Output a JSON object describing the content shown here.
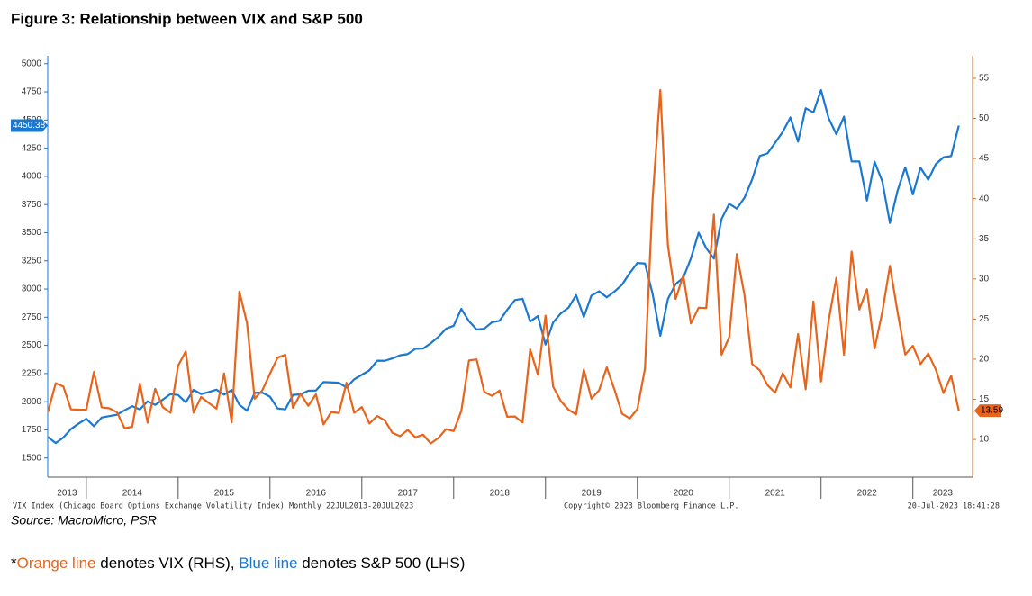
{
  "chart_data": {
    "type": "line",
    "title": "Figure 3: Relationship between VIX and S&P 500",
    "x": [
      2013.583,
      2013.667,
      2013.75,
      2013.833,
      2013.917,
      2014.0,
      2014.083,
      2014.167,
      2014.25,
      2014.333,
      2014.417,
      2014.5,
      2014.583,
      2014.667,
      2014.75,
      2014.833,
      2014.917,
      2015.0,
      2015.083,
      2015.167,
      2015.25,
      2015.333,
      2015.417,
      2015.5,
      2015.583,
      2015.667,
      2015.75,
      2015.833,
      2015.917,
      2016.0,
      2016.083,
      2016.167,
      2016.25,
      2016.333,
      2016.417,
      2016.5,
      2016.583,
      2016.667,
      2016.75,
      2016.833,
      2016.917,
      2017.0,
      2017.083,
      2017.167,
      2017.25,
      2017.333,
      2017.417,
      2017.5,
      2017.583,
      2017.667,
      2017.75,
      2017.833,
      2017.917,
      2018.0,
      2018.083,
      2018.167,
      2018.25,
      2018.333,
      2018.417,
      2018.5,
      2018.583,
      2018.667,
      2018.75,
      2018.833,
      2018.917,
      2019.0,
      2019.083,
      2019.167,
      2019.25,
      2019.333,
      2019.417,
      2019.5,
      2019.583,
      2019.667,
      2019.75,
      2019.833,
      2019.917,
      2020.0,
      2020.083,
      2020.167,
      2020.25,
      2020.333,
      2020.417,
      2020.5,
      2020.583,
      2020.667,
      2020.75,
      2020.833,
      2020.917,
      2021.0,
      2021.083,
      2021.167,
      2021.25,
      2021.333,
      2021.417,
      2021.5,
      2021.583,
      2021.667,
      2021.75,
      2021.833,
      2021.917,
      2022.0,
      2022.083,
      2022.167,
      2022.25,
      2022.333,
      2022.417,
      2022.5,
      2022.583,
      2022.667,
      2022.75,
      2022.833,
      2022.917,
      2023.0,
      2023.083,
      2023.167,
      2023.25,
      2023.333,
      2023.417,
      2023.5
    ],
    "series": [
      {
        "name": "S&P 500",
        "color": "#1a78d2",
        "axis": "y",
        "values": [
          1686,
          1633,
          1682,
          1757,
          1806,
          1848,
          1783,
          1859,
          1872,
          1884,
          1924,
          1960,
          1931,
          2003,
          1972,
          2018,
          2068,
          2059,
          1995,
          2105,
          2068,
          2086,
          2107,
          2063,
          2104,
          1972,
          1920,
          2079,
          2080,
          2044,
          1940,
          1932,
          2060,
          2065,
          2097,
          2099,
          2174,
          2171,
          2168,
          2126,
          2199,
          2239,
          2279,
          2364,
          2363,
          2384,
          2412,
          2423,
          2470,
          2472,
          2519,
          2575,
          2648,
          2674,
          2824,
          2714,
          2641,
          2648,
          2705,
          2718,
          2816,
          2902,
          2914,
          2712,
          2760,
          2507,
          2704,
          2784,
          2834,
          2946,
          2752,
          2942,
          2980,
          2926,
          2977,
          3038,
          3141,
          3231,
          3226,
          2954,
          2585,
          2912,
          3044,
          3100,
          3271,
          3500,
          3363,
          3270,
          3622,
          3756,
          3714,
          3811,
          3973,
          4181,
          4204,
          4298,
          4395,
          4523,
          4308,
          4605,
          4567,
          4766,
          4516,
          4374,
          4530,
          4132,
          4132,
          3785,
          4130,
          3955,
          3586,
          3872,
          4080,
          3840,
          4077,
          3970,
          4109,
          4169,
          4180,
          4450.38
        ]
      },
      {
        "name": "VIX",
        "color": "#e8641a",
        "axis": "y2",
        "values": [
          13.45,
          17.01,
          16.6,
          13.75,
          13.7,
          13.72,
          18.41,
          14.0,
          13.88,
          13.41,
          11.4,
          11.57,
          16.95,
          12.09,
          16.31,
          14.03,
          13.33,
          19.2,
          20.97,
          13.34,
          15.29,
          14.55,
          13.84,
          18.23,
          12.12,
          28.43,
          24.5,
          15.07,
          16.13,
          18.21,
          20.2,
          20.55,
          13.95,
          15.7,
          14.19,
          15.63,
          11.87,
          13.42,
          13.29,
          17.06,
          13.33,
          14.04,
          11.99,
          12.92,
          12.37,
          10.82,
          10.41,
          11.18,
          10.26,
          10.59,
          9.51,
          10.18,
          11.28,
          11.04,
          13.54,
          19.85,
          19.97,
          15.93,
          15.43,
          16.09,
          12.83,
          12.86,
          12.12,
          21.23,
          18.07,
          25.42,
          16.57,
          14.78,
          13.71,
          13.12,
          18.71,
          15.08,
          16.12,
          18.98,
          16.24,
          13.22,
          12.62,
          13.78,
          18.84,
          40.11,
          53.54,
          34.15,
          27.51,
          30.43,
          24.46,
          26.41,
          26.37,
          38.02,
          20.57,
          22.75,
          33.09,
          27.95,
          19.4,
          18.61,
          16.76,
          15.83,
          18.24,
          16.48,
          23.14,
          16.26,
          27.19,
          17.22,
          24.83,
          30.15,
          20.56,
          33.4,
          26.19,
          28.71,
          21.33,
          25.87,
          31.62,
          25.88,
          20.58,
          21.67,
          19.4,
          20.7,
          18.7,
          15.78,
          17.94,
          13.59
        ]
      }
    ],
    "xlim": [
      2013.58,
      2023.65
    ],
    "xticks": [
      2014,
      2015,
      2016,
      2017,
      2018,
      2019,
      2020,
      2021,
      2022,
      2023
    ],
    "year_labels": [
      2013,
      2014,
      2015,
      2016,
      2017,
      2018,
      2019,
      2020,
      2021,
      2022,
      2023
    ],
    "ylim": [
      1330,
      5070
    ],
    "yticks": [
      1500,
      1750,
      2000,
      2250,
      2500,
      2750,
      3000,
      3250,
      3500,
      3750,
      4000,
      4250,
      4500,
      4750,
      5000
    ],
    "y2lim": [
      5.3,
      57.8
    ],
    "y2ticks": [
      10,
      15,
      20,
      25,
      30,
      35,
      40,
      45,
      50,
      55
    ],
    "grid": false,
    "footer": {
      "left": "VIX Index (Chicago Board Options Exchange Volatility Index)  Monthly 22JUL2013-20JUL2023",
      "center": "Copyright© 2023 Bloomberg Finance L.P.",
      "right": "20-Jul-2023 18:41:28"
    },
    "source": "Source: MacroMicro, PSR",
    "note": {
      "star": "*",
      "orange": "Orange line",
      "denotes": " denotes ",
      "rhs": " (RHS), ",
      "blue": "Blue line",
      "lhs": " (LHS)"
    }
  }
}
